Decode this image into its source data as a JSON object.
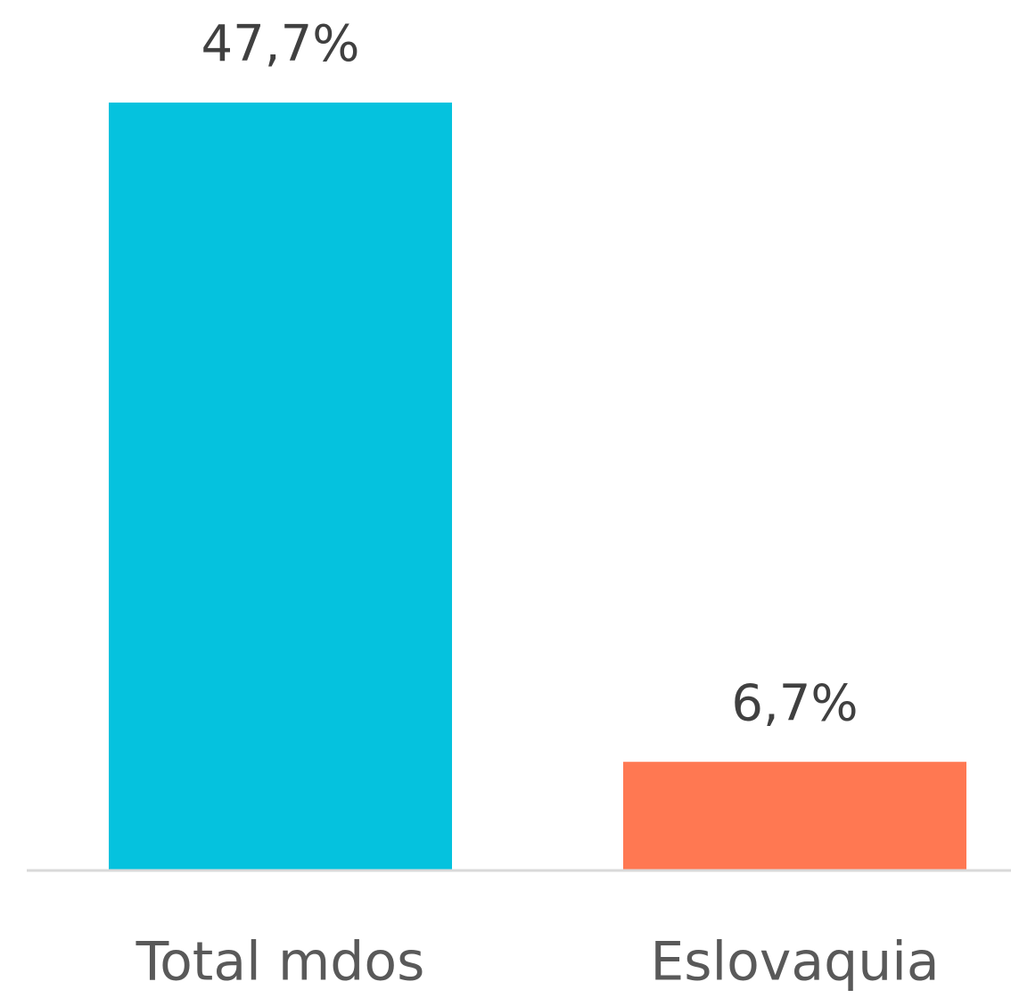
{
  "chart_data": {
    "type": "bar",
    "categories": [
      "Total mdos",
      "Eslovaquia"
    ],
    "values": [
      47.7,
      6.7
    ],
    "value_labels": [
      "47,7%",
      "6,7%"
    ],
    "colors": [
      "#05c2de",
      "#ff7852"
    ]
  }
}
